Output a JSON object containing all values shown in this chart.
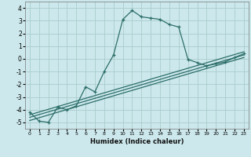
{
  "xlabel": "Humidex (Indice chaleur)",
  "background_color": "#cce8ec",
  "grid_color": "#aacccc",
  "line_color": "#2d6e6a",
  "xlim": [
    -0.5,
    23.5
  ],
  "ylim": [
    -5.5,
    4.5
  ],
  "xticks": [
    0,
    1,
    2,
    3,
    4,
    5,
    6,
    7,
    8,
    9,
    10,
    11,
    12,
    13,
    14,
    15,
    16,
    17,
    18,
    19,
    20,
    21,
    22,
    23
  ],
  "yticks": [
    -5,
    -4,
    -3,
    -2,
    -1,
    0,
    1,
    2,
    3,
    4
  ],
  "main_x": [
    0,
    1,
    2,
    3,
    4,
    5,
    6,
    7,
    8,
    9,
    10,
    11,
    12,
    13,
    14,
    15,
    16,
    17,
    18,
    19,
    20,
    21,
    22,
    23
  ],
  "main_y": [
    -4.2,
    -4.9,
    -5.0,
    -3.8,
    -4.0,
    -3.7,
    -2.2,
    -2.6,
    -1.0,
    0.3,
    3.1,
    3.8,
    3.3,
    3.2,
    3.1,
    2.7,
    2.5,
    -0.05,
    -0.3,
    -0.55,
    -0.4,
    -0.25,
    0.1,
    0.4
  ],
  "line1_x": [
    0,
    23
  ],
  "line1_y": [
    -4.4,
    0.55
  ],
  "line2_x": [
    0,
    23
  ],
  "line2_y": [
    -4.6,
    0.3
  ],
  "line3_x": [
    0,
    23
  ],
  "line3_y": [
    -4.85,
    0.1
  ]
}
